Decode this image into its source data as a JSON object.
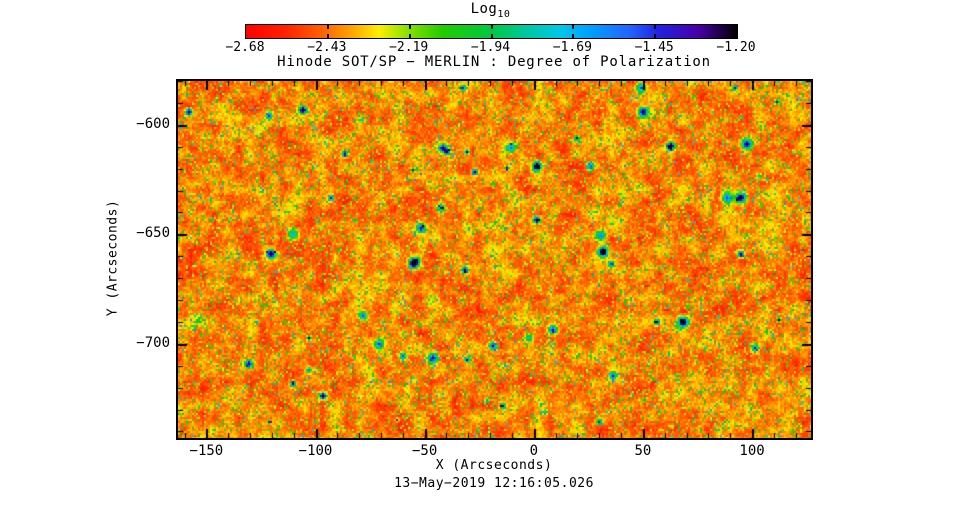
{
  "chart_data": {
    "type": "heatmap",
    "title": "Hinode SOT/SP − MERLIN : Degree of Polarization",
    "xlabel": "X (Arcseconds)",
    "ylabel": "Y (Arcseconds)",
    "caption": "13−May−2019 12:16:05.026",
    "xlim": [
      -163,
      127
    ],
    "ylim": [
      -743,
      -580
    ],
    "x_major_ticks": [
      -150,
      -100,
      -50,
      0,
      50,
      100
    ],
    "y_major_ticks": [
      -600,
      -650,
      -700
    ],
    "major_tick_step": 50,
    "minor_tick_step": 10,
    "grid": "off",
    "colorbar": {
      "title_main": "Log",
      "title_sub": "10",
      "min": -2.68,
      "max": -1.2,
      "tick_labels": [
        "−2.68",
        "−2.43",
        "−2.19",
        "−1.94",
        "−1.69",
        "−1.45",
        "−1.20"
      ],
      "orientation": "horizontal-top",
      "gradient": [
        {
          "t": 0.0,
          "c": "#ff0000"
        },
        {
          "t": 0.08,
          "c": "#ff2200"
        },
        {
          "t": 0.16,
          "c": "#ff6600"
        },
        {
          "t": 0.22,
          "c": "#ffaa00"
        },
        {
          "t": 0.27,
          "c": "#ffee00"
        },
        {
          "t": 0.33,
          "c": "#88e000"
        },
        {
          "t": 0.4,
          "c": "#22cc00"
        },
        {
          "t": 0.5,
          "c": "#00c844"
        },
        {
          "t": 0.58,
          "c": "#00c8aa"
        },
        {
          "t": 0.64,
          "c": "#00c8e8"
        },
        {
          "t": 0.7,
          "c": "#00a0ff"
        },
        {
          "t": 0.78,
          "c": "#2266ff"
        },
        {
          "t": 0.84,
          "c": "#2222e0"
        },
        {
          "t": 0.92,
          "c": "#4800a8"
        },
        {
          "t": 1.0,
          "c": "#000000"
        }
      ]
    },
    "field_description": "Noisy speckled map of log10 degree of polarization: dominant red-orange background (values near −2.5) mottled with yellow-green speckles (near −2.1) and sparse cyan/dark-blue patches (up to −1.2)",
    "background_color": "#ffffff",
    "frame_color": "#000000"
  }
}
